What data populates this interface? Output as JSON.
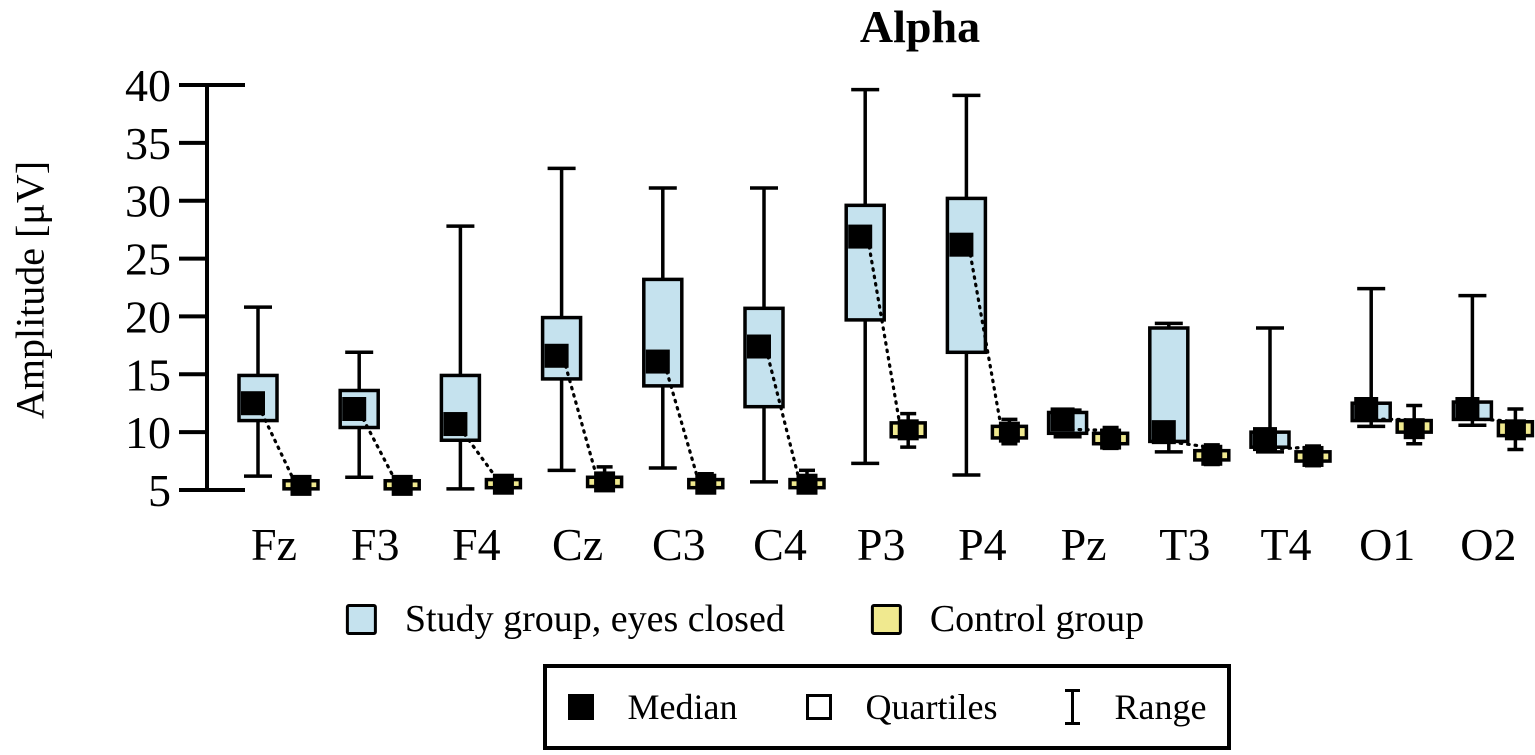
{
  "chart_data": {
    "type": "boxplot",
    "title": "Alpha",
    "ylabel": "Amplitude [μV]",
    "ylim": [
      5,
      40
    ],
    "yticks": [
      5,
      10,
      15,
      20,
      25,
      30,
      35,
      40
    ],
    "grid": false,
    "legend_position": "bottom",
    "categories": [
      "Fz",
      "F3",
      "F4",
      "Cz",
      "C3",
      "C4",
      "P3",
      "P4",
      "Pz",
      "T3",
      "T4",
      "O1",
      "O2"
    ],
    "series": [
      {
        "name": "Study group, eyes closed",
        "color": "#c5e2ee",
        "boxes": [
          {
            "category": "Fz",
            "low": 6.2,
            "q1": 11.0,
            "median": 12.5,
            "q3": 14.9,
            "high": 20.8
          },
          {
            "category": "F3",
            "low": 6.1,
            "q1": 10.4,
            "median": 12.0,
            "q3": 13.6,
            "high": 16.9
          },
          {
            "category": "F4",
            "low": 5.1,
            "q1": 9.3,
            "median": 10.7,
            "q3": 14.9,
            "high": 27.8
          },
          {
            "category": "Cz",
            "low": 6.7,
            "q1": 14.6,
            "median": 16.6,
            "q3": 19.9,
            "high": 32.8
          },
          {
            "category": "C3",
            "low": 6.9,
            "q1": 14.0,
            "median": 16.1,
            "q3": 23.2,
            "high": 31.1
          },
          {
            "category": "C4",
            "low": 5.7,
            "q1": 12.2,
            "median": 17.4,
            "q3": 20.7,
            "high": 31.1
          },
          {
            "category": "P3",
            "low": 7.3,
            "q1": 19.7,
            "median": 26.9,
            "q3": 29.6,
            "high": 39.6
          },
          {
            "category": "P4",
            "low": 6.3,
            "q1": 16.9,
            "median": 26.2,
            "q3": 30.2,
            "high": 39.1
          },
          {
            "category": "Pz",
            "low": 9.6,
            "q1": 9.9,
            "median": 11.1,
            "q3": 11.7,
            "high": 11.9
          },
          {
            "category": "T3",
            "low": 8.3,
            "q1": 9.2,
            "median": 10.0,
            "q3": 19.0,
            "high": 19.4
          },
          {
            "category": "T4",
            "low": 8.3,
            "q1": 8.7,
            "median": 9.4,
            "q3": 10.0,
            "high": 19.0
          },
          {
            "category": "O1",
            "low": 10.5,
            "q1": 11.0,
            "median": 12.0,
            "q3": 12.5,
            "high": 22.4
          },
          {
            "category": "O2",
            "low": 10.6,
            "q1": 11.1,
            "median": 12.0,
            "q3": 12.6,
            "high": 21.8
          }
        ]
      },
      {
        "name": "Control group",
        "color": "#f0e98f",
        "boxes": [
          {
            "category": "Fz",
            "low": 4.9,
            "q1": 5.1,
            "median": 5.4,
            "q3": 5.8,
            "high": 6.1
          },
          {
            "category": "F3",
            "low": 4.9,
            "q1": 5.1,
            "median": 5.4,
            "q3": 5.8,
            "high": 6.1
          },
          {
            "category": "F4",
            "low": 4.9,
            "q1": 5.2,
            "median": 5.5,
            "q3": 5.9,
            "high": 6.2
          },
          {
            "category": "Cz",
            "low": 5.0,
            "q1": 5.3,
            "median": 5.7,
            "q3": 6.1,
            "high": 7.0
          },
          {
            "category": "C3",
            "low": 4.9,
            "q1": 5.2,
            "median": 5.5,
            "q3": 5.9,
            "high": 6.4
          },
          {
            "category": "C4",
            "low": 4.9,
            "q1": 5.2,
            "median": 5.5,
            "q3": 5.9,
            "high": 6.7
          },
          {
            "category": "P3",
            "low": 8.7,
            "q1": 9.6,
            "median": 10.2,
            "q3": 10.8,
            "high": 11.6
          },
          {
            "category": "P4",
            "low": 9.0,
            "q1": 9.5,
            "median": 10.0,
            "q3": 10.5,
            "high": 11.1
          },
          {
            "category": "Pz",
            "low": 8.6,
            "q1": 9.0,
            "median": 9.4,
            "q3": 9.9,
            "high": 10.4
          },
          {
            "category": "T3",
            "low": 7.2,
            "q1": 7.6,
            "median": 8.0,
            "q3": 8.4,
            "high": 8.9
          },
          {
            "category": "T4",
            "low": 7.1,
            "q1": 7.5,
            "median": 7.9,
            "q3": 8.3,
            "high": 8.8
          },
          {
            "category": "O1",
            "low": 9.0,
            "q1": 10.0,
            "median": 10.3,
            "q3": 11.0,
            "high": 12.3
          },
          {
            "category": "O2",
            "low": 8.5,
            "q1": 9.7,
            "median": 10.2,
            "q3": 10.9,
            "high": 12.0
          }
        ]
      }
    ],
    "marker_legend": [
      {
        "symbol": "filled-square",
        "label": "Median"
      },
      {
        "symbol": "open-square",
        "label": "Quartiles"
      },
      {
        "symbol": "i-beam",
        "label": "Range"
      }
    ]
  }
}
